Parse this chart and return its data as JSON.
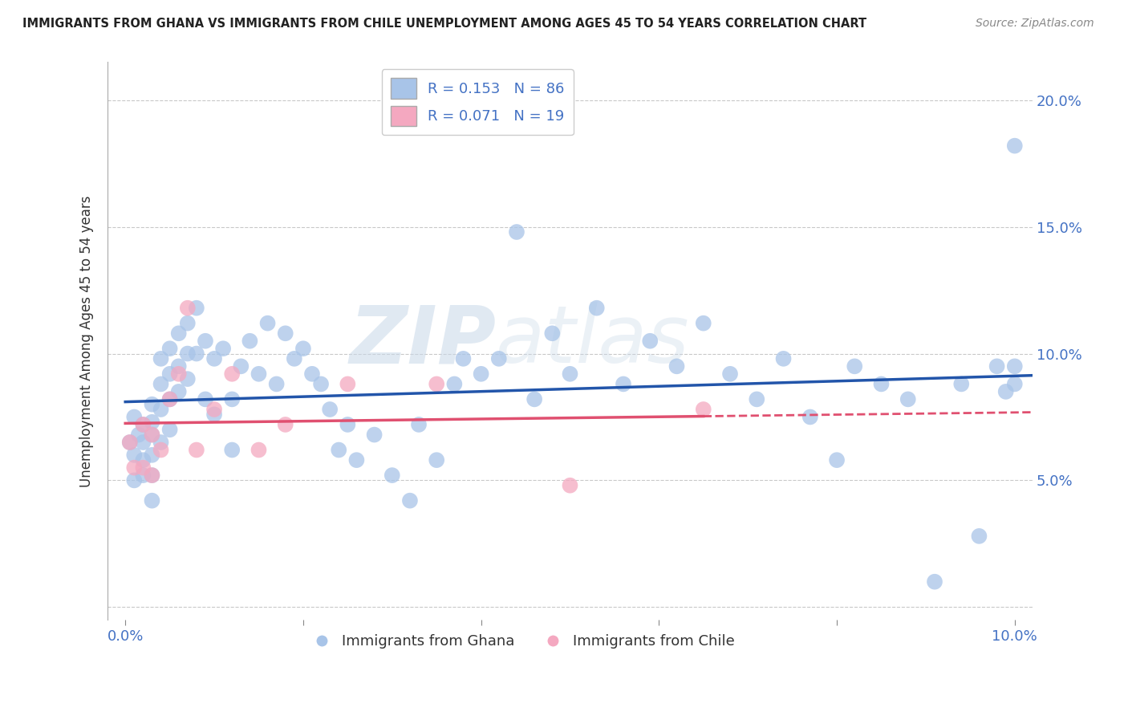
{
  "title": "IMMIGRANTS FROM GHANA VS IMMIGRANTS FROM CHILE UNEMPLOYMENT AMONG AGES 45 TO 54 YEARS CORRELATION CHART",
  "source": "Source: ZipAtlas.com",
  "ylabel": "Unemployment Among Ages 45 to 54 years",
  "xlim": [
    -0.002,
    0.102
  ],
  "ylim": [
    -0.005,
    0.215
  ],
  "ghana_R": "0.153",
  "ghana_N": "86",
  "chile_R": "0.071",
  "chile_N": "19",
  "ghana_color": "#a8c4e8",
  "chile_color": "#f4a8c0",
  "ghana_line_color": "#2255AA",
  "chile_line_color": "#E05070",
  "tick_label_color": "#4472C4",
  "background_color": "#ffffff",
  "grid_color": "#bbbbbb",
  "watermark_zip": "ZIP",
  "watermark_atlas": "atlas",
  "ghana_x": [
    0.0005,
    0.001,
    0.001,
    0.001,
    0.0015,
    0.002,
    0.002,
    0.002,
    0.002,
    0.003,
    0.003,
    0.003,
    0.003,
    0.003,
    0.003,
    0.004,
    0.004,
    0.004,
    0.004,
    0.005,
    0.005,
    0.005,
    0.005,
    0.006,
    0.006,
    0.006,
    0.007,
    0.007,
    0.007,
    0.008,
    0.008,
    0.009,
    0.009,
    0.01,
    0.01,
    0.011,
    0.012,
    0.012,
    0.013,
    0.014,
    0.015,
    0.016,
    0.017,
    0.018,
    0.019,
    0.02,
    0.021,
    0.022,
    0.023,
    0.024,
    0.025,
    0.026,
    0.028,
    0.03,
    0.032,
    0.033,
    0.035,
    0.037,
    0.038,
    0.04,
    0.042,
    0.044,
    0.046,
    0.048,
    0.05,
    0.053,
    0.056,
    0.059,
    0.062,
    0.065,
    0.068,
    0.071,
    0.074,
    0.077,
    0.08,
    0.082,
    0.085,
    0.088,
    0.091,
    0.094,
    0.096,
    0.098,
    0.099,
    0.1,
    0.1,
    0.1
  ],
  "ghana_y": [
    0.065,
    0.075,
    0.06,
    0.05,
    0.068,
    0.072,
    0.065,
    0.058,
    0.052,
    0.08,
    0.073,
    0.068,
    0.06,
    0.052,
    0.042,
    0.098,
    0.088,
    0.078,
    0.065,
    0.102,
    0.092,
    0.082,
    0.07,
    0.108,
    0.095,
    0.085,
    0.112,
    0.1,
    0.09,
    0.118,
    0.1,
    0.105,
    0.082,
    0.098,
    0.076,
    0.102,
    0.082,
    0.062,
    0.095,
    0.105,
    0.092,
    0.112,
    0.088,
    0.108,
    0.098,
    0.102,
    0.092,
    0.088,
    0.078,
    0.062,
    0.072,
    0.058,
    0.068,
    0.052,
    0.042,
    0.072,
    0.058,
    0.088,
    0.098,
    0.092,
    0.098,
    0.148,
    0.082,
    0.108,
    0.092,
    0.118,
    0.088,
    0.105,
    0.095,
    0.112,
    0.092,
    0.082,
    0.098,
    0.075,
    0.058,
    0.095,
    0.088,
    0.082,
    0.01,
    0.088,
    0.028,
    0.095,
    0.085,
    0.095,
    0.088,
    0.182
  ],
  "chile_x": [
    0.0005,
    0.001,
    0.002,
    0.002,
    0.003,
    0.003,
    0.004,
    0.005,
    0.006,
    0.007,
    0.008,
    0.01,
    0.012,
    0.015,
    0.018,
    0.025,
    0.035,
    0.05,
    0.065
  ],
  "chile_y": [
    0.065,
    0.055,
    0.072,
    0.055,
    0.068,
    0.052,
    0.062,
    0.082,
    0.092,
    0.118,
    0.062,
    0.078,
    0.092,
    0.062,
    0.072,
    0.088,
    0.088,
    0.048,
    0.078
  ]
}
